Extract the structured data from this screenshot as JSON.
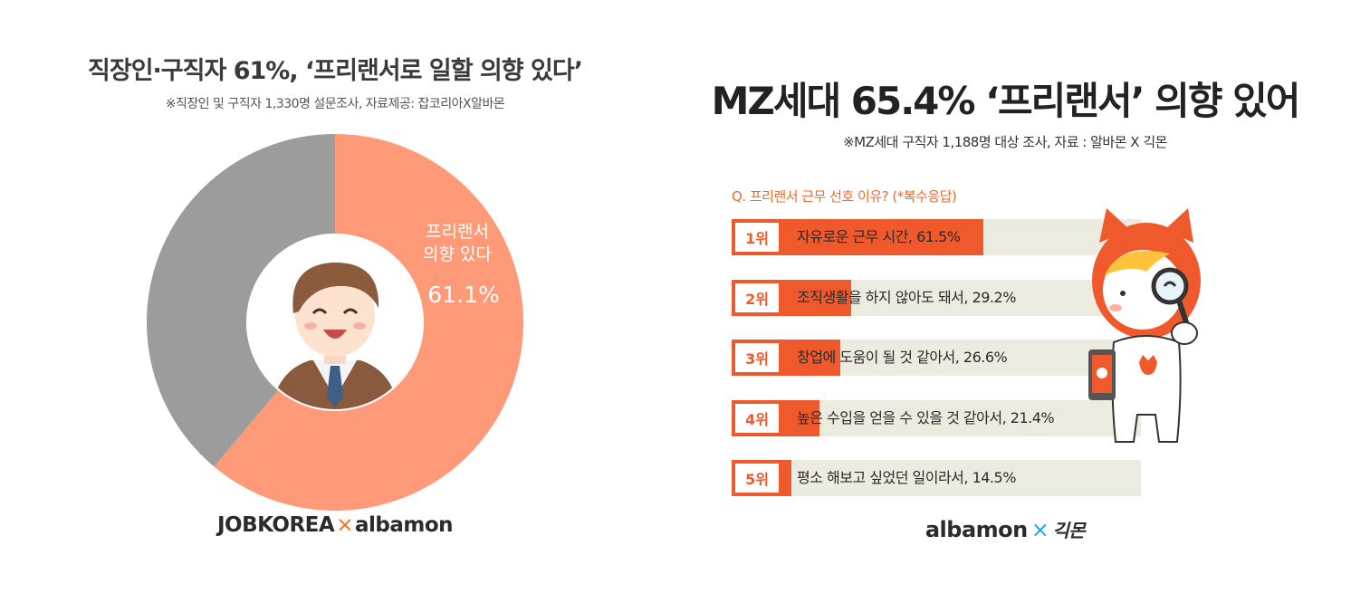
{
  "left_panel": {
    "title": "직장인·구직자 61%, ‘프리랜서로 일할 의향 있다’",
    "subtitle": "※직장인 및 구직자 1,330명 설문조사, 자료제공: 잡코리아X알바몬",
    "logo": {
      "part1": "JOBKOREA",
      "separator": "×",
      "part2": "albamon"
    }
  },
  "right_panel": {
    "title": "MZ세대 65.4% ‘프리랜서’ 의향 있어",
    "subtitle": "※MZ세대 구직자 1,188명 대상 조사, 자료 : 알바몬 X 긱몬",
    "question": "Q. 프리랜서 근무 선호 이유? (*복수응답)",
    "logo": {
      "part1": "albamon",
      "separator": "×",
      "part2": "긱몬"
    }
  },
  "colors": {
    "donut_main": "#ff9a78",
    "donut_rest": "#9c9c9c",
    "bar_fill": "#f0592b",
    "bar_track": "#ecebdf",
    "accent": "#ff6a1a"
  },
  "chart_data": [
    {
      "type": "pie",
      "title": "직장인·구직자 61%, ‘프리랜서로 일할 의향 있다’",
      "slices": [
        {
          "label": "프리랜서\n의향 있다",
          "label_line1": "프리랜서",
          "label_line2": "의향 있다",
          "value": 61.1,
          "value_label": "61.1%"
        },
        {
          "label": "",
          "value": 38.9
        }
      ]
    },
    {
      "type": "bar",
      "title": "Q. 프리랜서 근무 선호 이유? (*복수응답)",
      "xlim": [
        0,
        100
      ],
      "bars": [
        {
          "rank": "1위",
          "label": "자유로운 근무 시간, 61.5%",
          "value": 61.5
        },
        {
          "rank": "2위",
          "label": "조직생활을 하지 않아도 돼서, 29.2%",
          "value": 29.2
        },
        {
          "rank": "3위",
          "label": "창업에 도움이 될 것 같아서, 26.6%",
          "value": 26.6
        },
        {
          "rank": "4위",
          "label": "높은 수입을 얻을 수 있을 것 같아서, 21.4%",
          "value": 21.4
        },
        {
          "rank": "5위",
          "label": "평소 해보고 싶었던 일이라서, 14.5%",
          "value": 14.5
        }
      ]
    }
  ]
}
